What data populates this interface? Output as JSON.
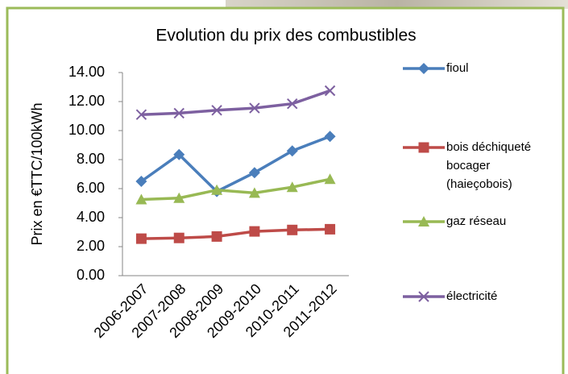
{
  "chart_data": {
    "type": "line",
    "title": "Evolution du prix des combustibles",
    "y_label": "Prix en €TTC/100kWh",
    "categories": [
      "2006-2007",
      "2007-2008",
      "2008-2009",
      "2009-2010",
      "2010-2011",
      "2011-2012"
    ],
    "series": [
      {
        "name": "fioul",
        "color": "#4a7ebb",
        "marker": "diamond",
        "values": [
          6.5,
          8.35,
          5.8,
          7.1,
          8.6,
          9.6
        ]
      },
      {
        "name": "bois déchiqueté bocager (haieçobois)",
        "color": "#be4b48",
        "marker": "square",
        "values": [
          2.55,
          2.6,
          2.7,
          3.05,
          3.15,
          3.2
        ]
      },
      {
        "name": "gaz réseau",
        "color": "#98b954",
        "marker": "triangle",
        "values": [
          5.25,
          5.35,
          5.9,
          5.7,
          6.1,
          6.65
        ]
      },
      {
        "name": "électricité",
        "color": "#7d60a0",
        "marker": "x",
        "values": [
          11.1,
          11.2,
          11.4,
          11.55,
          11.85,
          12.75
        ]
      }
    ],
    "ylim": [
      0,
      14
    ],
    "yticks": [
      {
        "value": 0,
        "label": "0.00"
      },
      {
        "value": 2,
        "label": "2.00"
      },
      {
        "value": 4,
        "label": "4.00"
      },
      {
        "value": 6,
        "label": "6.00"
      },
      {
        "value": 8,
        "label": "8.00"
      },
      {
        "value": 10,
        "label": "10.00"
      },
      {
        "value": 12,
        "label": "12.00"
      },
      {
        "value": 14,
        "label": "14.00"
      }
    ],
    "grid": false,
    "legend": "right"
  }
}
